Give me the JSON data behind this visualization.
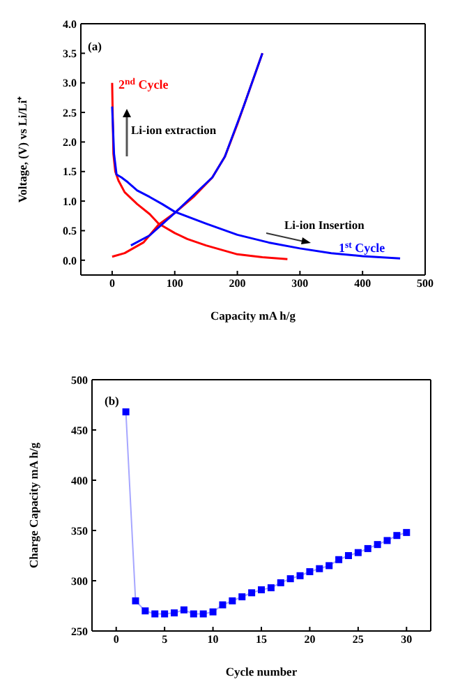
{
  "chart_data": [
    {
      "type": "line",
      "xlabel": "Capacity mA h/g",
      "ylabel": "Voltage, (V) vs Li/Li⁺",
      "xlim": [
        -50,
        500
      ],
      "ylim": [
        -0.25,
        4.0
      ],
      "xticks": [
        0,
        100,
        200,
        300,
        400,
        500
      ],
      "yticks": [
        {
          "value": 0,
          "label": "0.0"
        },
        0.5,
        {
          "value": 1,
          "label": "1.0"
        },
        1.5,
        {
          "value": 2,
          "label": "2.0"
        },
        2.5,
        {
          "value": 3,
          "label": "3.0"
        },
        3.5,
        {
          "value": 4,
          "label": "4.0"
        }
      ],
      "marker": "none",
      "line_style": "solid",
      "series": [
        {
          "color": "#ff0000",
          "x": [
            0,
            2,
            5,
            10,
            20,
            40,
            60,
            74,
            100,
            120,
            150,
            200,
            240,
            280
          ],
          "values": [
            3.0,
            1.8,
            1.5,
            1.35,
            1.15,
            0.95,
            0.78,
            0.62,
            0.46,
            0.36,
            0.25,
            0.1,
            0.05,
            0.02
          ]
        },
        {
          "color": "#ff0000",
          "x": [
            0,
            20,
            50,
            74,
            100,
            130,
            160,
            180,
            200,
            220,
            240
          ],
          "values": [
            0.06,
            0.12,
            0.3,
            0.6,
            0.8,
            1.07,
            1.4,
            1.75,
            2.3,
            2.9,
            3.5
          ]
        },
        {
          "color": "#0000ff",
          "x": [
            0,
            3,
            7,
            15,
            25,
            40,
            60,
            80,
            100,
            150,
            200,
            250,
            300,
            350,
            400,
            460
          ],
          "values": [
            2.6,
            1.8,
            1.45,
            1.4,
            1.32,
            1.18,
            1.07,
            0.95,
            0.82,
            0.62,
            0.43,
            0.3,
            0.2,
            0.12,
            0.07,
            0.03
          ]
        },
        {
          "color": "#0000ff",
          "x": [
            30,
            60,
            100,
            160,
            180,
            210,
            240
          ],
          "values": [
            0.25,
            0.42,
            0.8,
            1.4,
            1.75,
            2.6,
            3.5
          ]
        }
      ],
      "annotations": [
        "(a)",
        {
          "text": "2$^{nd}$ Cycle",
          "x": 10,
          "y": 2.9
        },
        "Li-ion extraction",
        "Li-ion Insertion",
        {
          "text": "1$^{st}$ Cycle",
          "x": 362,
          "y": 0.14
        }
      ]
    },
    {
      "type": "line",
      "xlabel": "Cycle number",
      "ylabel": "Charge Capacity mA h/g",
      "xlim": [
        -2.5,
        32.5
      ],
      "ylim": [
        250,
        500
      ],
      "xticks": [
        0,
        5,
        10,
        15,
        20,
        25,
        30
      ],
      "yticks": [
        250,
        300,
        350,
        400,
        450,
        500
      ],
      "marker": "square",
      "line_style": "solid",
      "series": [
        {
          "color": "#0000ff",
          "x": [
            1,
            2,
            3,
            4,
            5,
            6,
            7,
            8,
            9,
            10,
            11,
            12,
            13,
            14,
            15,
            16,
            17,
            18,
            19,
            20,
            21,
            22,
            23,
            24,
            25,
            26,
            27,
            28,
            29,
            30
          ],
          "values": [
            468,
            280,
            270,
            267,
            267,
            268,
            271,
            267,
            267,
            269,
            276,
            280,
            284,
            288,
            291,
            293,
            298,
            302,
            305,
            309,
            312,
            315,
            321,
            325,
            328,
            332,
            336,
            340,
            345,
            348
          ]
        }
      ],
      "annotations": [
        "(b)"
      ]
    }
  ]
}
